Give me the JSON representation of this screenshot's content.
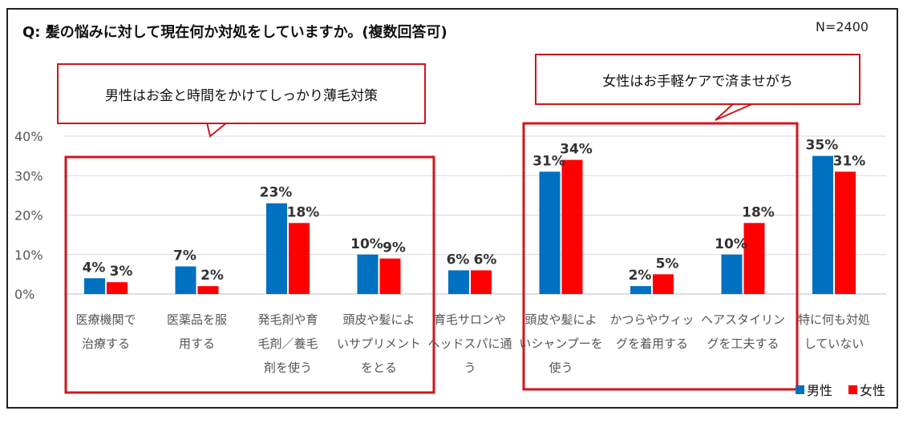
{
  "header": {
    "title": "Q:  髪の悩みに対して現在何か対処をしていますか。(複数回答可)",
    "n": "N=2400"
  },
  "callouts": [
    "男性はお金と時間をかけてしっかり薄毛対策",
    "女性はお手軽ケアで済ませがち"
  ],
  "colors": {
    "male": "#0070c0",
    "female": "#ff0000",
    "highlight": "#d0161b",
    "grid": "#d9d9d9"
  },
  "chart_data": {
    "type": "bar",
    "title": "Q:  髪の悩みに対して現在何か対処をしていますか。(複数回答可)",
    "categories": [
      [
        "医療機関で",
        "治療する"
      ],
      [
        "医薬品を服",
        "用する"
      ],
      [
        "発毛剤や育",
        "毛剤／養毛",
        "剤を使う"
      ],
      [
        "頭皮や髪によ",
        "いサプリメント",
        "をとる"
      ],
      [
        "育毛サロンや",
        "ヘッドスパに通",
        "う"
      ],
      [
        "頭皮や髪によ",
        "いシャンプーを",
        "使う"
      ],
      [
        "かつらやウィッ",
        "グを着用する"
      ],
      [
        "ヘアスタイリン",
        "グを工夫する"
      ],
      [
        "特に何も対処",
        "していない"
      ]
    ],
    "series": [
      {
        "name": "男性",
        "values": [
          4,
          7,
          23,
          10,
          6,
          31,
          2,
          10,
          35
        ]
      },
      {
        "name": "女性",
        "values": [
          3,
          2,
          18,
          9,
          6,
          34,
          5,
          18,
          31
        ]
      }
    ],
    "y_ticks": [
      "0%",
      "10%",
      "20%",
      "30%",
      "40%"
    ],
    "ylim": [
      0,
      40
    ],
    "legend": "bottom-right",
    "grid": true
  }
}
